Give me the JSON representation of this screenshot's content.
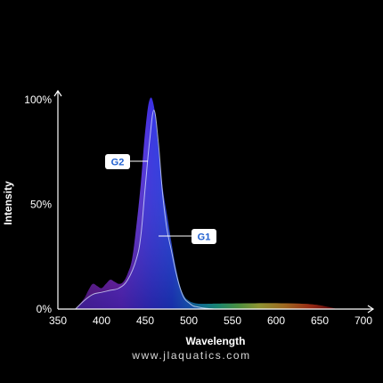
{
  "chart_data": {
    "type": "area",
    "xlabel": "Wavelength",
    "ylabel": "Intensity",
    "xlim": [
      350,
      700
    ],
    "ylim": [
      0,
      100
    ],
    "xticks": [
      "350",
      "400",
      "450",
      "500",
      "550",
      "600",
      "650",
      "700"
    ],
    "yticks": [
      "0%",
      "50%",
      "100%"
    ],
    "grid": false,
    "series": [
      {
        "name": "G2",
        "x": [
          370,
          380,
          385,
          390,
          395,
          400,
          405,
          410,
          415,
          420,
          425,
          430,
          435,
          440,
          445,
          450,
          455,
          460,
          465,
          470,
          475,
          480,
          485,
          490,
          495,
          500,
          505,
          510,
          515,
          520,
          530,
          550,
          600,
          640,
          660,
          670
        ],
        "y": [
          0,
          5,
          9,
          12,
          11,
          10,
          12,
          14,
          13,
          12,
          13,
          17,
          24,
          40,
          60,
          85,
          100,
          97,
          78,
          58,
          45,
          32,
          20,
          11,
          6,
          4,
          3,
          2.6,
          2.5,
          2.5,
          2.6,
          2.7,
          2.8,
          2.3,
          1,
          0
        ]
      },
      {
        "name": "G1",
        "x": [
          370,
          380,
          390,
          400,
          410,
          420,
          430,
          440,
          445,
          450,
          455,
          460,
          465,
          470,
          475,
          480,
          485,
          490,
          495,
          500,
          505,
          510,
          520,
          530
        ],
        "y": [
          0,
          4,
          7,
          8,
          9,
          10,
          14,
          24,
          35,
          58,
          80,
          95,
          80,
          55,
          38,
          28,
          18,
          10,
          5,
          3,
          1.5,
          1,
          0.3,
          0
        ]
      }
    ]
  },
  "annotations": {
    "g2_label": "G2",
    "g1_label": "G1"
  },
  "colors": {
    "background": "#000000",
    "axis": "#ffffff",
    "badge_fill": "#ffffff",
    "badge_text": "#1f5fd0"
  },
  "watermark": "www.jlaquatics.com"
}
